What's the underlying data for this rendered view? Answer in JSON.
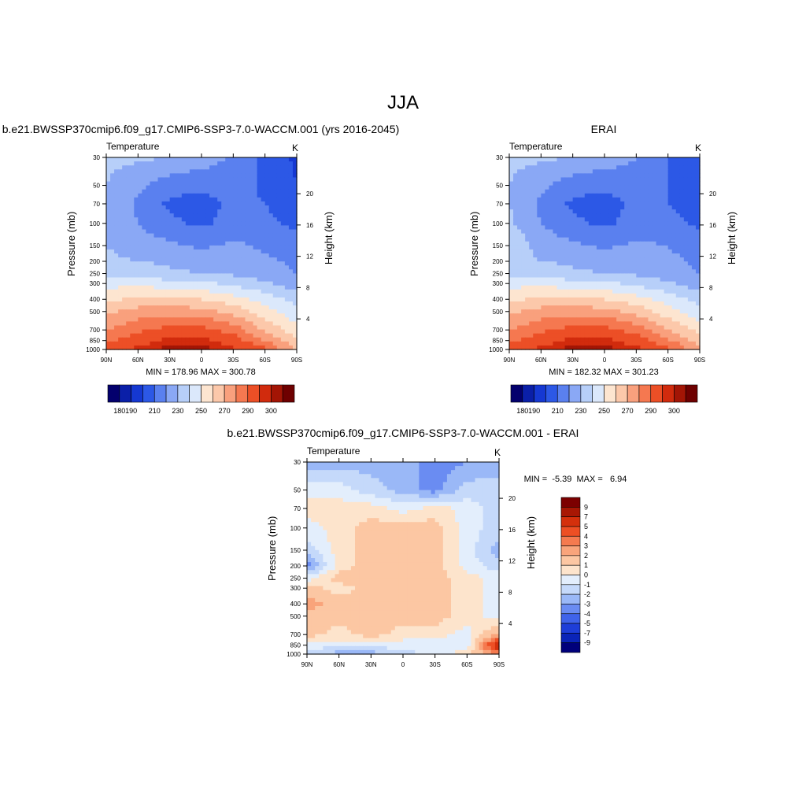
{
  "figure": {
    "title": "JJA"
  },
  "colors": {
    "abs_palette": [
      "#03006d",
      "#0a1fa8",
      "#1538d2",
      "#2c58e6",
      "#5a80ef",
      "#8aa8f5",
      "#b7cff9",
      "#dbe8fb",
      "#fde5d0",
      "#fcc8aa",
      "#f9a07d",
      "#f57850",
      "#ec4f26",
      "#d12b0d",
      "#a31505",
      "#6e0000"
    ],
    "diff_palette": [
      "#00007b",
      "#0a24b8",
      "#1e3ed8",
      "#3f63ea",
      "#6a8cf2",
      "#9ab8f7",
      "#c5d9fa",
      "#e3eefc",
      "#fde4cc",
      "#fcc7a3",
      "#f9a47b",
      "#f57a4f",
      "#ed4f24",
      "#d4300c",
      "#a81704",
      "#7c0000"
    ]
  },
  "axes": {
    "pressure_ticks": [
      "30",
      "50",
      "70",
      "100",
      "150",
      "200",
      "250",
      "300",
      "400",
      "500",
      "700",
      "850",
      "1000"
    ],
    "height_ticks": [
      "20",
      "16",
      "12",
      "8",
      "4"
    ],
    "lat_ticks": [
      "90N",
      "60N",
      "30N",
      "0",
      "30S",
      "60S",
      "90S"
    ],
    "left_label": "Pressure (mb)",
    "right_label": "Height (km)",
    "var_label": "Temperature",
    "unit": "K"
  },
  "panels": {
    "model": {
      "title": "b.e21.BWSSP370cmip6.f09_g17.CMIP6-SSP3-7.0-WACCM.001 (yrs 2016-2045)",
      "stats": "MIN = 178.96  MAX = 300.78"
    },
    "obs": {
      "title": "ERAI",
      "stats": "MIN = 182.32  MAX = 301.23"
    },
    "diff": {
      "title": "b.e21.BWSSP370cmip6.f09_g17.CMIP6-SSP3-7.0-WACCM.001 - ERAI",
      "stats": "MIN =  -5.39  MAX =   6.94"
    }
  },
  "colorbars": {
    "abs_labels": [
      "180",
      "190",
      "210",
      "230",
      "250",
      "270",
      "290",
      "300"
    ],
    "diff_labels": [
      "9",
      "7",
      "5",
      "4",
      "3",
      "2",
      "1",
      "0",
      "-1",
      "-2",
      "-3",
      "-4",
      "-5",
      "-7",
      "-9"
    ]
  },
  "chart_data": [
    {
      "type": "heatmap",
      "title": "b.e21.BWSSP370cmip6.f09_g17.CMIP6-SSP3-7.0-WACCM.001 (yrs 2016-2045)",
      "subtitle": "Temperature",
      "units": "K",
      "xlabel": "",
      "ylabel": "Pressure (mb)",
      "y2label": "Height (km)",
      "x": [
        "90N",
        "60N",
        "30N",
        "0",
        "30S",
        "60S",
        "90S"
      ],
      "y": [
        30,
        50,
        70,
        100,
        150,
        200,
        250,
        300,
        400,
        500,
        700,
        850,
        1000
      ],
      "y_scale": "log",
      "y_inverted": true,
      "contour_levels": [
        180,
        185,
        190,
        200,
        210,
        220,
        230,
        240,
        250,
        260,
        270,
        280,
        290,
        295,
        300
      ],
      "min": 178.96,
      "max": 300.78,
      "values": [
        [
          222,
          222,
          220,
          216,
          208,
          198,
          188
        ],
        [
          220,
          212,
          204,
          202,
          206,
          198,
          190
        ],
        [
          220,
          208,
          198,
          196,
          202,
          200,
          194
        ],
        [
          220,
          210,
          202,
          198,
          204,
          202,
          198
        ],
        [
          220,
          215,
          212,
          208,
          212,
          208,
          204
        ],
        [
          222,
          220,
          218,
          216,
          216,
          212,
          208
        ],
        [
          228,
          226,
          222,
          220,
          218,
          214,
          210
        ],
        [
          236,
          238,
          234,
          232,
          228,
          222,
          214
        ],
        [
          248,
          252,
          252,
          250,
          244,
          236,
          226
        ],
        [
          258,
          264,
          266,
          264,
          256,
          244,
          232
        ],
        [
          270,
          278,
          284,
          284,
          276,
          258,
          244
        ],
        [
          278,
          286,
          292,
          292,
          286,
          270,
          252
        ],
        [
          284,
          292,
          298,
          298,
          292,
          282,
          258
        ]
      ]
    },
    {
      "type": "heatmap",
      "title": "ERAI",
      "subtitle": "Temperature",
      "units": "K",
      "xlabel": "",
      "ylabel": "Pressure (mb)",
      "y2label": "Height (km)",
      "x": [
        "90N",
        "60N",
        "30N",
        "0",
        "30S",
        "60S",
        "90S"
      ],
      "y": [
        30,
        50,
        70,
        100,
        150,
        200,
        250,
        300,
        400,
        500,
        700,
        850,
        1000
      ],
      "y_scale": "log",
      "y_inverted": true,
      "contour_levels": [
        180,
        185,
        190,
        200,
        210,
        220,
        230,
        240,
        250,
        260,
        270,
        280,
        290,
        295,
        300
      ],
      "min": 182.32,
      "max": 301.23,
      "values": [
        [
          222,
          222,
          220,
          216,
          210,
          200,
          190
        ],
        [
          220,
          212,
          204,
          202,
          206,
          200,
          192
        ],
        [
          220,
          208,
          198,
          196,
          202,
          200,
          194
        ],
        [
          222,
          210,
          202,
          198,
          204,
          204,
          198
        ],
        [
          228,
          216,
          212,
          208,
          212,
          210,
          206
        ],
        [
          222,
          220,
          218,
          216,
          216,
          212,
          208
        ],
        [
          228,
          226,
          222,
          220,
          218,
          214,
          210
        ],
        [
          236,
          238,
          234,
          232,
          228,
          222,
          214
        ],
        [
          248,
          252,
          252,
          250,
          244,
          236,
          226
        ],
        [
          258,
          264,
          266,
          264,
          256,
          244,
          232
        ],
        [
          270,
          278,
          284,
          284,
          276,
          260,
          246
        ],
        [
          278,
          286,
          292,
          292,
          286,
          272,
          256
        ],
        [
          284,
          292,
          298,
          298,
          292,
          284,
          260
        ]
      ]
    },
    {
      "type": "heatmap",
      "title": "b.e21.BWSSP370cmip6.f09_g17.CMIP6-SSP3-7.0-WACCM.001 - ERAI",
      "subtitle": "Temperature",
      "units": "K",
      "xlabel": "",
      "ylabel": "Pressure (mb)",
      "y2label": "Height (km)",
      "x": [
        "90N",
        "60N",
        "30N",
        "0",
        "30S",
        "60S",
        "90S"
      ],
      "y": [
        30,
        50,
        70,
        100,
        150,
        200,
        250,
        300,
        400,
        500,
        700,
        850,
        1000
      ],
      "y_scale": "log",
      "y_inverted": true,
      "contour_levels": [
        -9,
        -7,
        -5,
        -4,
        -3,
        -2,
        -1,
        0,
        1,
        2,
        3,
        4,
        5,
        7,
        9
      ],
      "min": -5.39,
      "max": 6.94,
      "values": [
        [
          -2.5,
          -2.5,
          -2.5,
          -2.5,
          -3.5,
          -3,
          -2.5
        ],
        [
          -0.5,
          -0.5,
          -1.5,
          -2.5,
          -3.5,
          -1.5,
          -1.5
        ],
        [
          0.5,
          0.5,
          0.5,
          -0.5,
          0.5,
          -0.5,
          -1.5
        ],
        [
          -0.5,
          0.5,
          1.5,
          1.5,
          1.5,
          -0.5,
          -1.5
        ],
        [
          -1.5,
          0.5,
          1.5,
          1.5,
          1.5,
          -0.5,
          -2.5
        ],
        [
          -3.5,
          0.5,
          1.5,
          1.5,
          1.5,
          -0.5,
          -1.5
        ],
        [
          -0.5,
          1.5,
          1.5,
          1.5,
          1.5,
          0.5,
          -0.5
        ],
        [
          1.5,
          0.5,
          1.5,
          1.5,
          1.5,
          0.5,
          -0.5
        ],
        [
          2.5,
          1.5,
          1.5,
          1.5,
          1.5,
          0.5,
          -0.5
        ],
        [
          1.5,
          1.5,
          1.5,
          1.5,
          1.5,
          0.5,
          -0.5
        ],
        [
          1.5,
          0.5,
          1.5,
          0.5,
          0.5,
          -0.5,
          2.5
        ],
        [
          -0.5,
          -0.5,
          -0.5,
          -0.5,
          -0.5,
          -0.5,
          6.5
        ],
        [
          -1.5,
          -2.5,
          -2.5,
          -1.5,
          -0.5,
          0.5,
          3.5
        ]
      ]
    }
  ]
}
